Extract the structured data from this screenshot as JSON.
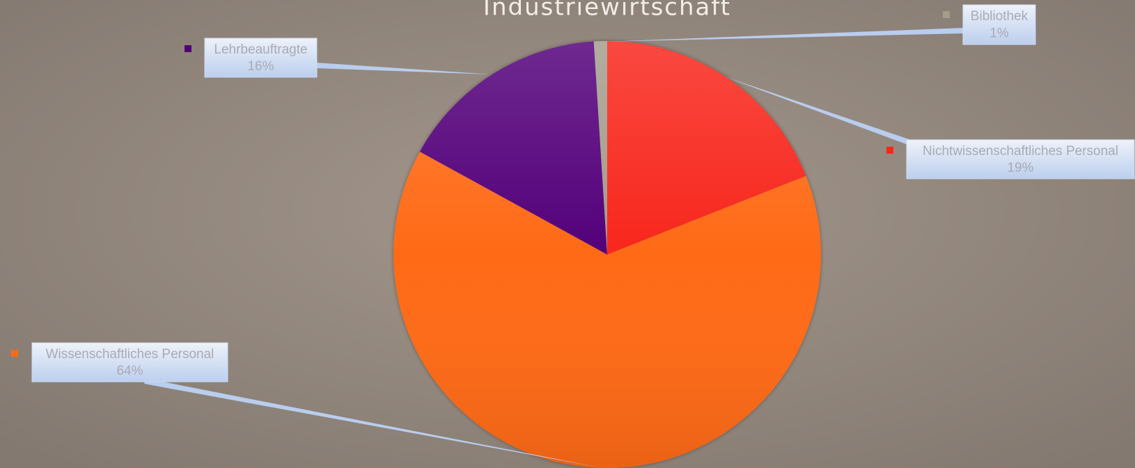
{
  "chart_data": {
    "type": "pie",
    "title": "Industriewirtschaft",
    "categories": [
      "Nichtwissenschaftliches Personal",
      "Wissenschaftliches Personal",
      "Lehrbeauftragte",
      "Bibliothek"
    ],
    "values": [
      19,
      64,
      16,
      1
    ],
    "value_labels": [
      "19%",
      "64%",
      "16%",
      "1%"
    ],
    "colors": [
      "#f8251a",
      "#ff6a12",
      "#52007a",
      "#a39d8c"
    ]
  }
}
